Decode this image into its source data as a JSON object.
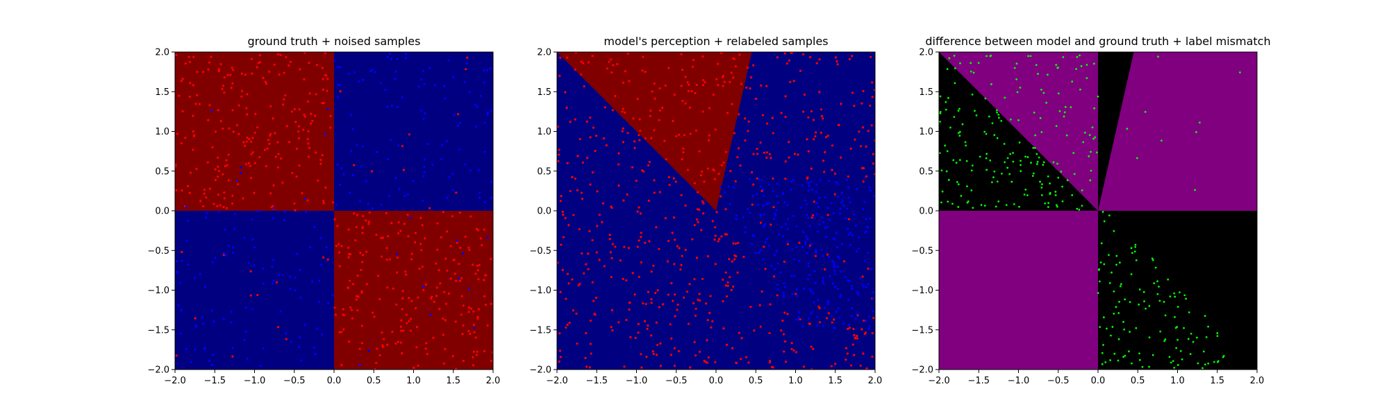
{
  "chart_data": [
    {
      "type": "scatter",
      "title": "ground truth + noised samples",
      "xlim": [
        -2.0,
        2.0
      ],
      "ylim": [
        -2.0,
        2.0
      ],
      "xticks": [
        "−2.0",
        "−1.5",
        "−1.0",
        "−0.5",
        "0.0",
        "0.5",
        "1.0",
        "1.5",
        "2.0"
      ],
      "yticks": [
        "−2.0",
        "−1.5",
        "−1.0",
        "−0.5",
        "0.0",
        "0.5",
        "1.0",
        "1.5",
        "2.0"
      ],
      "xtick_values": [
        -2.0,
        -1.5,
        -1.0,
        -0.5,
        0.0,
        0.5,
        1.0,
        1.5,
        2.0
      ],
      "ytick_values": [
        -2.0,
        -1.5,
        -1.0,
        -0.5,
        0.0,
        0.5,
        1.0,
        1.5,
        2.0
      ],
      "background_regions": [
        {
          "color": "#800000",
          "polygon": [
            [
              -2,
              0
            ],
            [
              0,
              0
            ],
            [
              0,
              2
            ],
            [
              -2,
              2
            ]
          ]
        },
        {
          "color": "#000080",
          "polygon": [
            [
              0,
              0
            ],
            [
              2,
              0
            ],
            [
              2,
              2
            ],
            [
              0,
              2
            ]
          ]
        },
        {
          "color": "#000080",
          "polygon": [
            [
              -2,
              -2
            ],
            [
              0,
              -2
            ],
            [
              0,
              0
            ],
            [
              -2,
              0
            ]
          ]
        },
        {
          "color": "#800000",
          "polygon": [
            [
              0,
              -2
            ],
            [
              2,
              -2
            ],
            [
              2,
              0
            ],
            [
              0,
              0
            ]
          ]
        }
      ],
      "series": [
        {
          "color": "#ff0000",
          "marker_size": 1.6,
          "count": 470,
          "seed": 11,
          "rule": "xy_negative",
          "noise": 0.28
        },
        {
          "color": "#0000ff",
          "marker_size": 1.6,
          "count": 230,
          "seed": 23,
          "rule": "xy_positive",
          "noise": 0.28
        }
      ],
      "grid": false
    },
    {
      "type": "scatter",
      "title": "model's perception + relabeled samples",
      "xlim": [
        -2.0,
        2.0
      ],
      "ylim": [
        -2.0,
        2.0
      ],
      "xticks": [
        "−2.0",
        "−1.5",
        "−1.0",
        "−0.5",
        "0.0",
        "0.5",
        "1.0",
        "1.5",
        "2.0"
      ],
      "yticks": [
        "−2.0",
        "−1.5",
        "−1.0",
        "−0.5",
        "0.0",
        "0.5",
        "1.0",
        "1.5",
        "2.0"
      ],
      "xtick_values": [
        -2.0,
        -1.5,
        -1.0,
        -0.5,
        0.0,
        0.5,
        1.0,
        1.5,
        2.0
      ],
      "ytick_values": [
        -2.0,
        -1.5,
        -1.0,
        -0.5,
        0.0,
        0.5,
        1.0,
        1.5,
        2.0
      ],
      "background_regions": [
        {
          "color": "#000080",
          "polygon": [
            [
              -2,
              -2
            ],
            [
              2,
              -2
            ],
            [
              2,
              2
            ],
            [
              -2,
              2
            ]
          ]
        },
        {
          "color": "#800000",
          "polygon": [
            [
              0,
              0
            ],
            [
              -2,
              2
            ],
            [
              0.45,
              2
            ]
          ]
        }
      ],
      "series": [
        {
          "color": "#ff0000",
          "marker_size": 1.6,
          "count": 620,
          "seed": 37,
          "rule": "model_red"
        },
        {
          "color": "#0000ff",
          "marker_size": 1.6,
          "count": 260,
          "seed": 41,
          "rule": "model_blue"
        }
      ],
      "grid": false
    },
    {
      "type": "scatter",
      "title": "difference between model and ground truth + label mismatch",
      "xlim": [
        -2.0,
        2.0
      ],
      "ylim": [
        -2.0,
        2.0
      ],
      "xticks": [
        "−2.0",
        "−1.5",
        "−1.0",
        "−0.5",
        "0.0",
        "0.5",
        "1.0",
        "1.5",
        "2.0"
      ],
      "yticks": [
        "−2.0",
        "−1.5",
        "−1.0",
        "−0.5",
        "0.0",
        "0.5",
        "1.0",
        "1.5",
        "2.0"
      ],
      "xtick_values": [
        -2.0,
        -1.5,
        -1.0,
        -0.5,
        0.0,
        0.5,
        1.0,
        1.5,
        2.0
      ],
      "ytick_values": [
        -2.0,
        -1.5,
        -1.0,
        -0.5,
        0.0,
        0.5,
        1.0,
        1.5,
        2.0
      ],
      "background_regions": [
        {
          "color": "#800080",
          "polygon": [
            [
              -2,
              -2
            ],
            [
              2,
              -2
            ],
            [
              2,
              2
            ],
            [
              -2,
              2
            ]
          ]
        },
        {
          "color": "#000000",
          "polygon": [
            [
              0,
              0
            ],
            [
              -2,
              0
            ],
            [
              -2,
              2
            ]
          ]
        },
        {
          "color": "#000000",
          "polygon": [
            [
              0,
              0
            ],
            [
              0,
              2
            ],
            [
              0.45,
              2
            ]
          ]
        },
        {
          "color": "#000000",
          "polygon": [
            [
              0,
              0
            ],
            [
              2,
              0
            ],
            [
              2,
              -2
            ],
            [
              0,
              -2
            ]
          ]
        }
      ],
      "series": [
        {
          "color": "#00ff00",
          "marker_size": 1.4,
          "count": 330,
          "seed": 53,
          "rule": "mismatch"
        }
      ],
      "grid": false
    }
  ]
}
